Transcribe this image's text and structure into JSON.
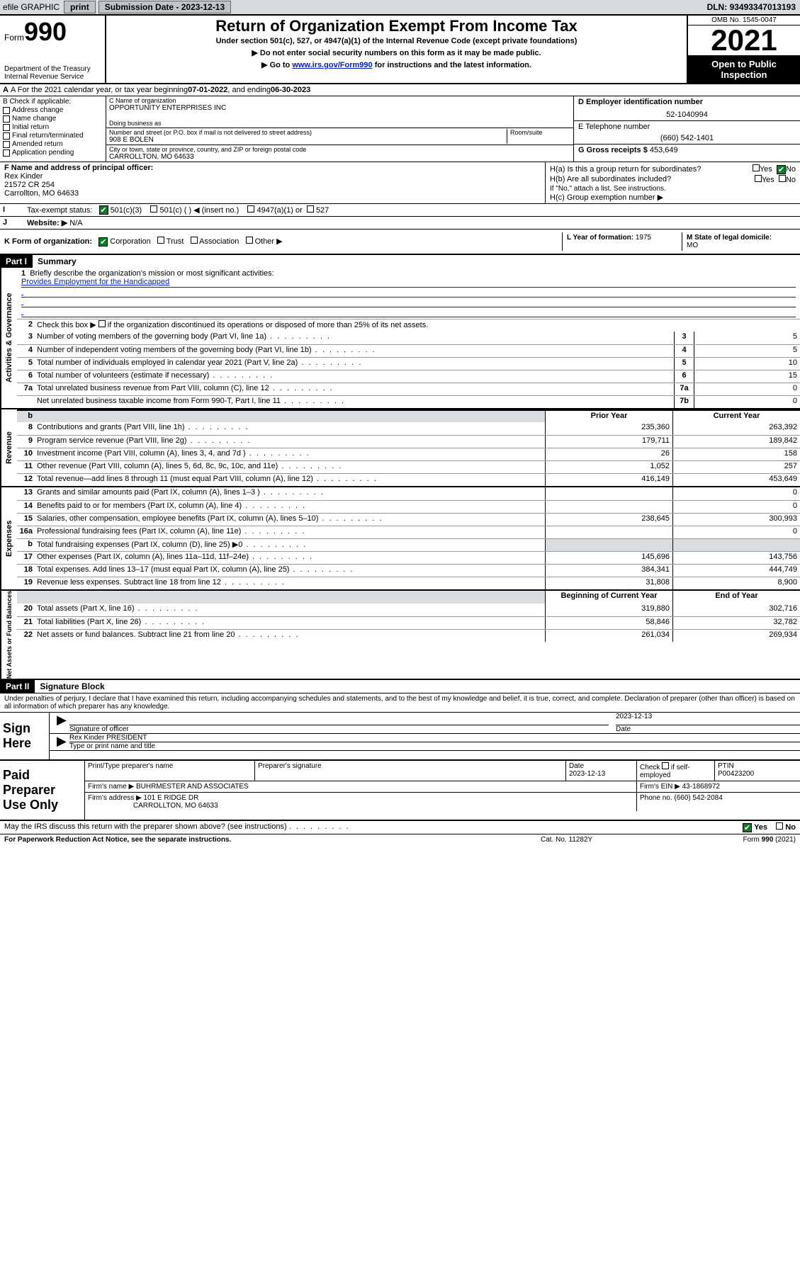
{
  "topbar": {
    "efile": "efile GRAPHIC",
    "print": "print",
    "subdate_lbl": "Submission Date - ",
    "subdate": "2023-12-13",
    "dln_lbl": "DLN: ",
    "dln": "93493347013193"
  },
  "hdr": {
    "form": "Form",
    "num990": "990",
    "dept": "Department of the Treasury",
    "irs": "Internal Revenue Service",
    "title": "Return of Organization Exempt From Income Tax",
    "sub": "Under section 501(c), 527, or 4947(a)(1) of the Internal Revenue Code (except private foundations)",
    "line1": "▶ Do not enter social security numbers on this form as it may be made public.",
    "line2a": "▶ Go to ",
    "line2link": "www.irs.gov/Form990",
    "line2b": " for instructions and the latest information.",
    "omb": "OMB No. 1545-0047",
    "year": "2021",
    "open": "Open to Public Inspection"
  },
  "A": {
    "text": "A For the 2021 calendar year, or tax year beginning ",
    "begin": "07-01-2022",
    "mid": " , and ending ",
    "end": "06-30-2023"
  },
  "B": {
    "lbl": "B Check if applicable:",
    "opts": [
      "Address change",
      "Name change",
      "Initial return",
      "Final return/terminated",
      "Amended return",
      "Application pending"
    ]
  },
  "C": {
    "name_lbl": "C Name of organization",
    "name": "OPPORTUNITY ENTERPRISES INC",
    "dba_lbl": "Doing business as",
    "dba": "",
    "addr_lbl": "Number and street (or P.O. box if mail is not delivered to street address)",
    "room_lbl": "Room/suite",
    "addr": "908 E BOLEN",
    "city_lbl": "City or town, state or province, country, and ZIP or foreign postal code",
    "city": "CARROLLTON, MO  64633"
  },
  "D": {
    "lbl": "D Employer identification number",
    "val": "52-1040994"
  },
  "E": {
    "lbl": "E Telephone number",
    "val": "(660) 542-1401"
  },
  "G": {
    "lbl": "G Gross receipts $ ",
    "val": "453,649"
  },
  "F": {
    "lbl": "F Name and address of principal officer:",
    "name": "Rex Kinder",
    "addr1": "21572 CR 254",
    "addr2": "Carrollton, MO  64633"
  },
  "H": {
    "a": "H(a)  Is this a group return for subordinates?",
    "b": "H(b)  Are all subordinates included?",
    "bnote": "If \"No,\" attach a list. See instructions.",
    "c": "H(c)  Group exemption number ▶",
    "yes": "Yes",
    "no": "No"
  },
  "I": {
    "lbl": "Tax-exempt status:",
    "o1": "501(c)(3)",
    "o2": "501(c) (  ) ◀ (insert no.)",
    "o3": "4947(a)(1) or",
    "o4": "527"
  },
  "J": {
    "lbl": "Website: ▶",
    "val": "N/A"
  },
  "K": {
    "lbl": "K Form of organization:",
    "o1": "Corporation",
    "o2": "Trust",
    "o3": "Association",
    "o4": "Other ▶"
  },
  "L": {
    "lbl": "L Year of formation: ",
    "val": "1975"
  },
  "M": {
    "lbl": "M State of legal domicile:",
    "val": "MO"
  },
  "part1": {
    "tag": "Part I",
    "title": "Summary"
  },
  "summary": {
    "l1": "Briefly describe the organization's mission or most significant activities:",
    "mission": "Provides Employment for the Handicapped",
    "l2": "Check this box ▶",
    "l2b": " if the organization discontinued its operations or disposed of more than 25% of its net assets.",
    "rows_gov": [
      {
        "n": "3",
        "d": "Number of voting members of the governing body (Part VI, line 1a)",
        "b": "3",
        "v": "5"
      },
      {
        "n": "4",
        "d": "Number of independent voting members of the governing body (Part VI, line 1b)",
        "b": "4",
        "v": "5"
      },
      {
        "n": "5",
        "d": "Total number of individuals employed in calendar year 2021 (Part V, line 2a)",
        "b": "5",
        "v": "10"
      },
      {
        "n": "6",
        "d": "Total number of volunteers (estimate if necessary)",
        "b": "6",
        "v": "15"
      },
      {
        "n": "7a",
        "d": "Total unrelated business revenue from Part VIII, column (C), line 12",
        "b": "7a",
        "v": "0"
      },
      {
        "n": "",
        "d": "Net unrelated business taxable income from Form 990-T, Part I, line 11",
        "b": "7b",
        "v": "0"
      }
    ],
    "col_prior": "Prior Year",
    "col_curr": "Current Year",
    "rows_rev": [
      {
        "n": "8",
        "d": "Contributions and grants (Part VIII, line 1h)",
        "p": "235,360",
        "c": "263,392"
      },
      {
        "n": "9",
        "d": "Program service revenue (Part VIII, line 2g)",
        "p": "179,711",
        "c": "189,842"
      },
      {
        "n": "10",
        "d": "Investment income (Part VIII, column (A), lines 3, 4, and 7d )",
        "p": "26",
        "c": "158"
      },
      {
        "n": "11",
        "d": "Other revenue (Part VIII, column (A), lines 5, 6d, 8c, 9c, 10c, and 11e)",
        "p": "1,052",
        "c": "257"
      },
      {
        "n": "12",
        "d": "Total revenue—add lines 8 through 11 (must equal Part VIII, column (A), line 12)",
        "p": "416,149",
        "c": "453,649"
      }
    ],
    "rows_exp": [
      {
        "n": "13",
        "d": "Grants and similar amounts paid (Part IX, column (A), lines 1–3 )",
        "p": "",
        "c": "0"
      },
      {
        "n": "14",
        "d": "Benefits paid to or for members (Part IX, column (A), line 4)",
        "p": "",
        "c": "0"
      },
      {
        "n": "15",
        "d": "Salaries, other compensation, employee benefits (Part IX, column (A), lines 5–10)",
        "p": "238,645",
        "c": "300,993"
      },
      {
        "n": "16a",
        "d": "Professional fundraising fees (Part IX, column (A), line 11e)",
        "p": "",
        "c": "0"
      },
      {
        "n": "b",
        "d": "Total fundraising expenses (Part IX, column (D), line 25) ▶0",
        "p": "shade",
        "c": "shade"
      },
      {
        "n": "17",
        "d": "Other expenses (Part IX, column (A), lines 11a–11d, 11f–24e)",
        "p": "145,696",
        "c": "143,756"
      },
      {
        "n": "18",
        "d": "Total expenses. Add lines 13–17 (must equal Part IX, column (A), line 25)",
        "p": "384,341",
        "c": "444,749"
      },
      {
        "n": "19",
        "d": "Revenue less expenses. Subtract line 18 from line 12",
        "p": "31,808",
        "c": "8,900"
      }
    ],
    "col_begin": "Beginning of Current Year",
    "col_end": "End of Year",
    "rows_net": [
      {
        "n": "20",
        "d": "Total assets (Part X, line 16)",
        "p": "319,880",
        "c": "302,716"
      },
      {
        "n": "21",
        "d": "Total liabilities (Part X, line 26)",
        "p": "58,846",
        "c": "32,782"
      },
      {
        "n": "22",
        "d": "Net assets or fund balances. Subtract line 21 from line 20",
        "p": "261,034",
        "c": "269,934"
      }
    ]
  },
  "side": {
    "gov": "Activities & Governance",
    "rev": "Revenue",
    "exp": "Expenses",
    "net": "Net Assets or Fund Balances"
  },
  "part2": {
    "tag": "Part II",
    "title": "Signature Block"
  },
  "sig": {
    "decl": "Under penalties of perjury, I declare that I have examined this return, including accompanying schedules and statements, and to the best of my knowledge and belief, it is true, correct, and complete. Declaration of preparer (other than officer) is based on all information of which preparer has any knowledge.",
    "signhere": "Sign Here",
    "sigoff": "Signature of officer",
    "date": "Date",
    "dateval": "2023-12-13",
    "name": "Rex Kinder PRESIDENT",
    "name_lbl": "Type or print name and title"
  },
  "paid": {
    "lbl": "Paid Preparer Use Only",
    "h1": "Print/Type preparer's name",
    "h2": "Preparer's signature",
    "h3": "Date",
    "h3v": "2023-12-13",
    "h4a": "Check",
    "h4b": "if self-employed",
    "h5": "PTIN",
    "h5v": "P00423200",
    "firm_lbl": "Firm's name    ▶",
    "firm": "BUHRMESTER AND ASSOCIATES",
    "ein_lbl": "Firm's EIN ▶ ",
    "ein": "43-1868972",
    "addr_lbl": "Firm's address ▶",
    "addr1": "101 E RIDGE DR",
    "addr2": "CARROLLTON, MO  64633",
    "phone_lbl": "Phone no. ",
    "phone": "(660) 542-2084"
  },
  "discuss": {
    "q": "May the IRS discuss this return with the preparer shown above? (see instructions)",
    "yes": "Yes",
    "no": "No"
  },
  "footer": {
    "pra": "For Paperwork Reduction Act Notice, see the separate instructions.",
    "cat": "Cat. No. 11282Y",
    "form": "Form 990 (2021)"
  }
}
